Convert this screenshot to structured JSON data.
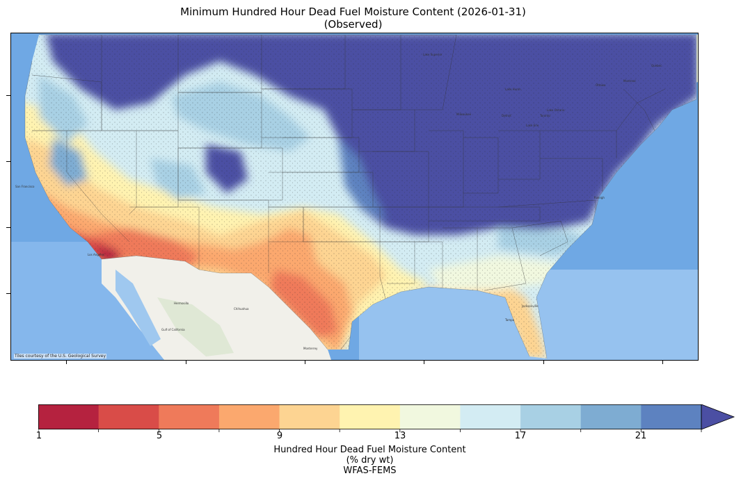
{
  "title": {
    "line1": "Minimum Hundred Hour Dead Fuel Moisture Content (2026-01-31)",
    "line2": "(Observed)"
  },
  "map": {
    "credit": "Tiles courtesy of the U.S. Geological Survey",
    "basemap_labels": [
      "Chihuahua",
      "Hermosillo",
      "Gulf of California",
      "Monterrey",
      "Jacksonville",
      "Tampa",
      "Raleigh",
      "Ottawa",
      "Montreal",
      "Quebec",
      "Toronto",
      "Lake Superior",
      "Lake Huron",
      "Lake Erie",
      "Lake Ontario",
      "Detroit",
      "Milwaukee",
      "San Francisco",
      "Los Angeles"
    ],
    "colors": {
      "ocean": "#7fb3e6",
      "land_background": "#e8efe0",
      "mexico_land": "#f2f1ec"
    }
  },
  "colorbar": {
    "ticks": [
      "1",
      "5",
      "9",
      "13",
      "17",
      "21"
    ],
    "label_line1": "Hundred Hour Dead Fuel Moisture Content",
    "label_line2": "(% dry wt)",
    "label_line3": "WFAS-FEMS",
    "bins": [
      {
        "color": "#b5223f"
      },
      {
        "color": "#d94c48"
      },
      {
        "color": "#ef7a5a"
      },
      {
        "color": "#fba86e"
      },
      {
        "color": "#fdd492"
      },
      {
        "color": "#fff3b0"
      },
      {
        "color": "#f1f8df"
      },
      {
        "color": "#d3ecf3"
      },
      {
        "color": "#a8d0e4"
      },
      {
        "color": "#7eacd2"
      },
      {
        "color": "#5d82c0"
      }
    ],
    "extend_color": "#4b4fa3"
  }
}
